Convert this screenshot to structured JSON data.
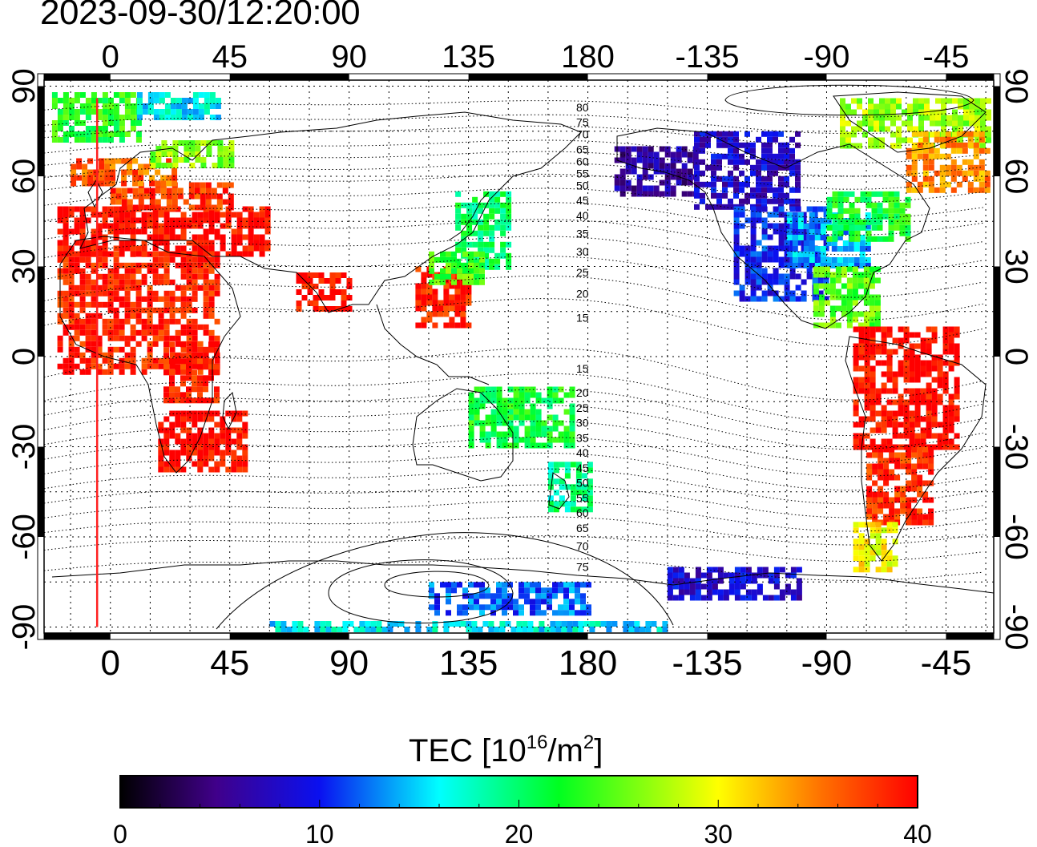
{
  "timestamp": "2023-09-30/12:20:00",
  "map": {
    "lon_tick_labels": [
      "0",
      "45",
      "90",
      "135",
      "180",
      "-135",
      "-90",
      "-45"
    ],
    "lon_tick_values": [
      0,
      45,
      90,
      135,
      180,
      225,
      270,
      315
    ],
    "lat_tick_labels": [
      "90",
      "60",
      "30",
      "0",
      "-30",
      "-60",
      "-90"
    ],
    "lat_tick_values": [
      90,
      60,
      30,
      0,
      -30,
      -60,
      -90
    ],
    "lon_range": [
      -25,
      333
    ],
    "lat_range": [
      -92,
      92
    ],
    "grid": "dotted, 15 deg",
    "marker_longitude": -5,
    "marker_color": "#ff2020",
    "contour_labels": [
      {
        "text": "80",
        "lat": 83
      },
      {
        "text": "75",
        "lat": 78
      },
      {
        "text": "70",
        "lat": 74
      },
      {
        "text": "65",
        "lat": 69
      },
      {
        "text": "60",
        "lat": 65
      },
      {
        "text": "55",
        "lat": 61
      },
      {
        "text": "50",
        "lat": 57
      },
      {
        "text": "45",
        "lat": 52
      },
      {
        "text": "40",
        "lat": 47
      },
      {
        "text": "35",
        "lat": 41
      },
      {
        "text": "30",
        "lat": 35
      },
      {
        "text": "25",
        "lat": 28
      },
      {
        "text": "20",
        "lat": 21
      },
      {
        "text": "15",
        "lat": 13
      },
      {
        "text": "15",
        "lat": -4
      },
      {
        "text": "20",
        "lat": -12
      },
      {
        "text": "25",
        "lat": -17
      },
      {
        "text": "30",
        "lat": -22
      },
      {
        "text": "35",
        "lat": -27
      },
      {
        "text": "40",
        "lat": -32
      },
      {
        "text": "45",
        "lat": -37
      },
      {
        "text": "50",
        "lat": -42
      },
      {
        "text": "55",
        "lat": -47
      },
      {
        "text": "60",
        "lat": -52
      },
      {
        "text": "65",
        "lat": -57
      },
      {
        "text": "70",
        "lat": -63
      },
      {
        "text": "75",
        "lat": -70
      }
    ],
    "tec_regions": [
      {
        "lon": [
          -20,
          40
        ],
        "lat": [
          -5,
          35
        ],
        "tec": 39
      },
      {
        "lon": [
          -20,
          60
        ],
        "lat": [
          35,
          50
        ],
        "tec": 40
      },
      {
        "lon": [
          0,
          45
        ],
        "lat": [
          50,
          58
        ],
        "tec": 38
      },
      {
        "lon": [
          -15,
          25
        ],
        "lat": [
          58,
          66
        ],
        "tec": 36
      },
      {
        "lon": [
          15,
          45
        ],
        "lat": [
          64,
          72
        ],
        "tec": 26
      },
      {
        "lon": [
          -22,
          10
        ],
        "lat": [
          72,
          88
        ],
        "tec": 23
      },
      {
        "lon": [
          10,
          40
        ],
        "lat": [
          80,
          88
        ],
        "tec": 16
      },
      {
        "lon": [
          18,
          50
        ],
        "lat": [
          -37,
          -18
        ],
        "tec": 40
      },
      {
        "lon": [
          20,
          40
        ],
        "lat": [
          -15,
          5
        ],
        "tec": 39
      },
      {
        "lon": [
          70,
          90
        ],
        "lat": [
          15,
          28
        ],
        "tec": 40
      },
      {
        "lon": [
          115,
          135
        ],
        "lat": [
          10,
          30
        ],
        "tec": 39
      },
      {
        "lon": [
          130,
          150
        ],
        "lat": [
          30,
          55
        ],
        "tec": 20
      },
      {
        "lon": [
          120,
          140
        ],
        "lat": [
          25,
          35
        ],
        "tec": 24
      },
      {
        "lon": [
          165,
          180
        ],
        "lat": [
          -50,
          -35
        ],
        "tec": 19
      },
      {
        "lon": [
          135,
          175
        ],
        "lat": [
          -30,
          -10
        ],
        "tec": 22
      },
      {
        "lon": [
          190,
          220
        ],
        "lat": [
          55,
          70
        ],
        "tec": 6
      },
      {
        "lon": [
          220,
          260
        ],
        "lat": [
          50,
          75
        ],
        "tec": 8
      },
      {
        "lon": [
          235,
          270
        ],
        "lat": [
          20,
          50
        ],
        "tec": 10
      },
      {
        "lon": [
          255,
          285
        ],
        "lat": [
          30,
          48
        ],
        "tec": 14
      },
      {
        "lon": [
          270,
          300
        ],
        "lat": [
          40,
          55
        ],
        "tec": 22
      },
      {
        "lon": [
          275,
          330
        ],
        "lat": [
          70,
          86
        ],
        "tec": 27
      },
      {
        "lon": [
          300,
          330
        ],
        "lat": [
          55,
          75
        ],
        "tec": 34
      },
      {
        "lon": [
          265,
          290
        ],
        "lat": [
          10,
          30
        ],
        "tec": 25
      },
      {
        "lon": [
          280,
          320
        ],
        "lat": [
          -30,
          10
        ],
        "tec": 40
      },
      {
        "lon": [
          285,
          310
        ],
        "lat": [
          -55,
          -30
        ],
        "tec": 38
      },
      {
        "lon": [
          280,
          295
        ],
        "lat": [
          -70,
          -55
        ],
        "tec": 30
      },
      {
        "lon": [
          210,
          260
        ],
        "lat": [
          -80,
          -70
        ],
        "tec": 8
      },
      {
        "lon": [
          120,
          180
        ],
        "lat": [
          -85,
          -75
        ],
        "tec": 12
      },
      {
        "lon": [
          60,
          210
        ],
        "lat": [
          -90,
          -88
        ],
        "tec": 16
      }
    ]
  },
  "colorbar": {
    "label_main": "TEC  [10",
    "label_exp": "16",
    "label_unit": "/m",
    "label_exp2": "2",
    "label_end": "]",
    "range": [
      0,
      40
    ],
    "tick_labels": [
      "0",
      "10",
      "20",
      "30",
      "40"
    ]
  }
}
